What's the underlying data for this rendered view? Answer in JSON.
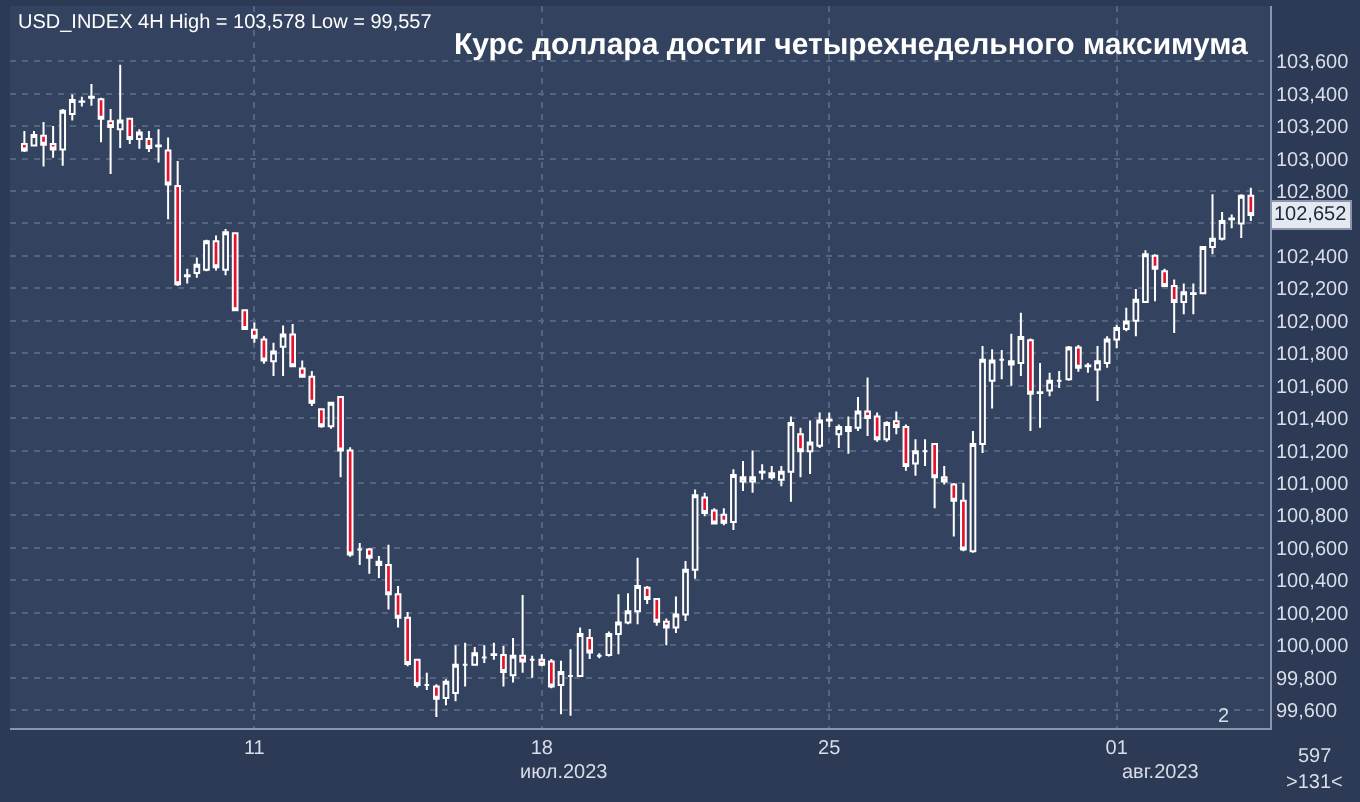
{
  "chart_data": {
    "type": "candlestick",
    "title": "Курс доллара достиг четырехнедельного максимума",
    "subtitle": "USD_INDEX 4H High = 103,578 Low = 99,557",
    "categories": [
      null,
      null,
      null,
      null,
      null,
      null,
      null,
      null,
      null,
      null,
      null,
      null,
      null,
      null,
      null,
      null,
      null,
      null,
      null,
      null,
      null,
      null,
      null,
      null,
      "11",
      null,
      null,
      null,
      null,
      null,
      null,
      null,
      null,
      null,
      null,
      null,
      null,
      null,
      null,
      null,
      null,
      null,
      null,
      null,
      null,
      null,
      null,
      null,
      null,
      null,
      null,
      null,
      null,
      null,
      "18",
      null,
      null,
      null,
      null,
      null,
      null,
      null,
      null,
      null,
      null,
      null,
      null,
      null,
      null,
      null,
      null,
      null,
      null,
      null,
      null,
      null,
      null,
      null,
      null,
      null,
      null,
      null,
      null,
      null,
      "25",
      null,
      null,
      null,
      null,
      null,
      null,
      null,
      null,
      null,
      null,
      null,
      null,
      null,
      null,
      null,
      null,
      null,
      null,
      null,
      null,
      null,
      null,
      null,
      null,
      null,
      null,
      null,
      null,
      null,
      "01",
      null,
      null,
      null,
      null,
      null,
      null,
      null,
      null,
      null,
      null,
      null,
      null,
      null,
      null
    ],
    "ohlc": [
      [
        103090,
        103170,
        103040,
        103050
      ],
      [
        103080,
        103170,
        103080,
        103145
      ],
      [
        103140,
        103225,
        102950,
        103085
      ],
      [
        103090,
        103200,
        103005,
        103055
      ],
      [
        103055,
        103305,
        102955,
        103295
      ],
      [
        103275,
        103395,
        103235,
        103360
      ],
      [
        103350,
        103380,
        103320,
        103352
      ],
      [
        103375,
        103460,
        103325,
        103380
      ],
      [
        103365,
        103375,
        103100,
        103245
      ],
      [
        103230,
        103305,
        102905,
        103195
      ],
      [
        103180,
        103578,
        103065,
        103235
      ],
      [
        103245,
        103250,
        103090,
        103120
      ],
      [
        103120,
        103180,
        103060,
        103160
      ],
      [
        103120,
        103170,
        103040,
        103065
      ],
      [
        103075,
        103180,
        102975,
        103080
      ],
      [
        103050,
        103130,
        102625,
        102840
      ],
      [
        102830,
        102985,
        102215,
        102225
      ],
      [
        102280,
        102320,
        102230,
        102275
      ],
      [
        102295,
        102390,
        102265,
        102345
      ],
      [
        102315,
        102500,
        102305,
        102490
      ],
      [
        102490,
        102525,
        102310,
        102330
      ],
      [
        102315,
        102565,
        102280,
        102545
      ],
      [
        102540,
        102545,
        102060,
        102065
      ],
      [
        102065,
        102070,
        101945,
        101950
      ],
      [
        101945,
        101990,
        101865,
        101895
      ],
      [
        101885,
        101905,
        101735,
        101755
      ],
      [
        101750,
        101865,
        101660,
        101810
      ],
      [
        101840,
        101970,
        101660,
        101915
      ],
      [
        101915,
        101980,
        101715,
        101720
      ],
      [
        101705,
        101755,
        101650,
        101655
      ],
      [
        101655,
        101690,
        101475,
        101495
      ],
      [
        101455,
        101460,
        101340,
        101350
      ],
      [
        101350,
        101500,
        101335,
        101495
      ],
      [
        101530,
        101535,
        101035,
        101200
      ],
      [
        101200,
        101220,
        100545,
        100560
      ],
      [
        100590,
        100630,
        100495,
        100590
      ],
      [
        100590,
        100600,
        100440,
        100540
      ],
      [
        100515,
        100550,
        100415,
        100495
      ],
      [
        100495,
        100620,
        100220,
        100315
      ],
      [
        100315,
        100365,
        100110,
        100170
      ],
      [
        100170,
        100205,
        99870,
        99885
      ],
      [
        99910,
        99915,
        99740,
        99755
      ],
      [
        99755,
        99830,
        99725,
        99755
      ],
      [
        99745,
        99760,
        99557,
        99670
      ],
      [
        99675,
        99790,
        99630,
        99775
      ],
      [
        99705,
        100000,
        99655,
        99880
      ],
      [
        99880,
        100015,
        99745,
        99880
      ],
      [
        99880,
        99990,
        99880,
        99950
      ],
      [
        99925,
        100000,
        99890,
        99925
      ],
      [
        99940,
        100015,
        99910,
        99945
      ],
      [
        99940,
        99995,
        99745,
        99835
      ],
      [
        99815,
        100045,
        99770,
        99935
      ],
      [
        99935,
        100310,
        99830,
        99900
      ],
      [
        99910,
        99935,
        99800,
        99910
      ],
      [
        99910,
        99945,
        99870,
        99880
      ],
      [
        99900,
        99915,
        99735,
        99745
      ],
      [
        99755,
        99905,
        99575,
        99835
      ],
      [
        99810,
        99975,
        99565,
        99810
      ],
      [
        99810,
        100110,
        99805,
        100070
      ],
      [
        100045,
        100100,
        99915,
        99955
      ],
      [
        99935,
        99950,
        99920,
        99935
      ],
      [
        99940,
        100085,
        99930,
        100070
      ],
      [
        100070,
        100315,
        99945,
        100140
      ],
      [
        100140,
        100320,
        100130,
        100210
      ],
      [
        100210,
        100540,
        100130,
        100365
      ],
      [
        100355,
        100365,
        100255,
        100285
      ],
      [
        100285,
        100290,
        100120,
        100145
      ],
      [
        100145,
        100165,
        100000,
        100110
      ],
      [
        100110,
        100300,
        100075,
        100190
      ],
      [
        100190,
        100520,
        100150,
        100465
      ],
      [
        100465,
        100960,
        100410,
        100925
      ],
      [
        100910,
        100940,
        100795,
        100815
      ],
      [
        100830,
        100845,
        100745,
        100750
      ],
      [
        100805,
        100845,
        100740,
        100755
      ],
      [
        100760,
        101085,
        100710,
        101050
      ],
      [
        101010,
        101135,
        100950,
        101035
      ],
      [
        101010,
        101200,
        100940,
        101035
      ],
      [
        101065,
        101115,
        101020,
        101070
      ],
      [
        101060,
        101105,
        101020,
        101035
      ],
      [
        101020,
        101105,
        100980,
        101070
      ],
      [
        101070,
        101410,
        100885,
        101370
      ],
      [
        101300,
        101340,
        101035,
        101195
      ],
      [
        101195,
        101385,
        101055,
        101250
      ],
      [
        101230,
        101435,
        101215,
        101385
      ],
      [
        101385,
        101435,
        101345,
        101390
      ],
      [
        101300,
        101360,
        101215,
        101345
      ],
      [
        101345,
        101410,
        101180,
        101320
      ],
      [
        101340,
        101530,
        101320,
        101440
      ],
      [
        101440,
        101650,
        101290,
        101400
      ],
      [
        101410,
        101435,
        101255,
        101270
      ],
      [
        101270,
        101380,
        101255,
        101370
      ],
      [
        101380,
        101440,
        101300,
        101345
      ],
      [
        101345,
        101360,
        101075,
        101105
      ],
      [
        101120,
        101270,
        101045,
        101195
      ],
      [
        101195,
        101270,
        101105,
        101195
      ],
      [
        101240,
        101245,
        100845,
        101035
      ],
      [
        101035,
        101105,
        100990,
        101010
      ],
      [
        100990,
        101000,
        100670,
        100890
      ],
      [
        100890,
        101000,
        100580,
        100590
      ],
      [
        100580,
        101320,
        100570,
        101240
      ],
      [
        101240,
        101845,
        101185,
        101760
      ],
      [
        101630,
        101825,
        101460,
        101755
      ],
      [
        101760,
        101820,
        101640,
        101760
      ],
      [
        101730,
        101920,
        101600,
        101750
      ],
      [
        101740,
        102050,
        101660,
        101900
      ],
      [
        101880,
        101890,
        101320,
        101550
      ],
      [
        101555,
        101740,
        101340,
        101560
      ],
      [
        101570,
        101680,
        101535,
        101630
      ],
      [
        101630,
        101690,
        101585,
        101630
      ],
      [
        101640,
        101845,
        101630,
        101835
      ],
      [
        101835,
        101850,
        101685,
        101710
      ],
      [
        101720,
        101740,
        101680,
        101725
      ],
      [
        101700,
        101845,
        101505,
        101750
      ],
      [
        101740,
        101905,
        101710,
        101885
      ],
      [
        101885,
        101975,
        101830,
        101955
      ],
      [
        101950,
        102080,
        101935,
        101995
      ],
      [
        102000,
        102195,
        101905,
        102130
      ],
      [
        102115,
        102435,
        102110,
        102410
      ],
      [
        102400,
        102410,
        102120,
        102320
      ],
      [
        102305,
        102320,
        102210,
        102215
      ],
      [
        102215,
        102255,
        101925,
        102115
      ],
      [
        102115,
        102230,
        102040,
        102175
      ],
      [
        102165,
        102230,
        102040,
        102170
      ],
      [
        102170,
        102460,
        102165,
        102455
      ],
      [
        102455,
        102780,
        102410,
        102505
      ],
      [
        102505,
        102670,
        102495,
        102615
      ],
      [
        102625,
        102655,
        102570,
        102630
      ],
      [
        102600,
        102780,
        102510,
        102770
      ],
      [
        102770,
        102820,
        102615,
        102652
      ]
    ],
    "ylim": [
      99490,
      103940
    ],
    "yticks": [
      {
        "value": 99600,
        "label": "99,600"
      },
      {
        "value": 99800,
        "label": "99,800"
      },
      {
        "value": 100000,
        "label": "100,000"
      },
      {
        "value": 100200,
        "label": "100,200"
      },
      {
        "value": 100400,
        "label": "100,400"
      },
      {
        "value": 100600,
        "label": "100,600"
      },
      {
        "value": 100800,
        "label": "100,800"
      },
      {
        "value": 101000,
        "label": "101,000"
      },
      {
        "value": 101200,
        "label": "101,200"
      },
      {
        "value": 101400,
        "label": "101,400"
      },
      {
        "value": 101600,
        "label": "101,600"
      },
      {
        "value": 101800,
        "label": "101,800"
      },
      {
        "value": 102000,
        "label": "102,000"
      },
      {
        "value": 102200,
        "label": "102,200"
      },
      {
        "value": 102400,
        "label": "102,400"
      },
      {
        "value": 102600,
        "label": null
      },
      {
        "value": 102800,
        "label": "102,800"
      },
      {
        "value": 103000,
        "label": "103,000"
      },
      {
        "value": 103200,
        "label": "103,200"
      },
      {
        "value": 103400,
        "label": "103,400"
      },
      {
        "value": 103600,
        "label": "103,600"
      }
    ],
    "grid": true,
    "annotations": [
      {
        "text": "102,652",
        "y": 102652
      },
      "июл.2023",
      "авг.2023",
      "597",
      ">131<",
      "2"
    ]
  }
}
